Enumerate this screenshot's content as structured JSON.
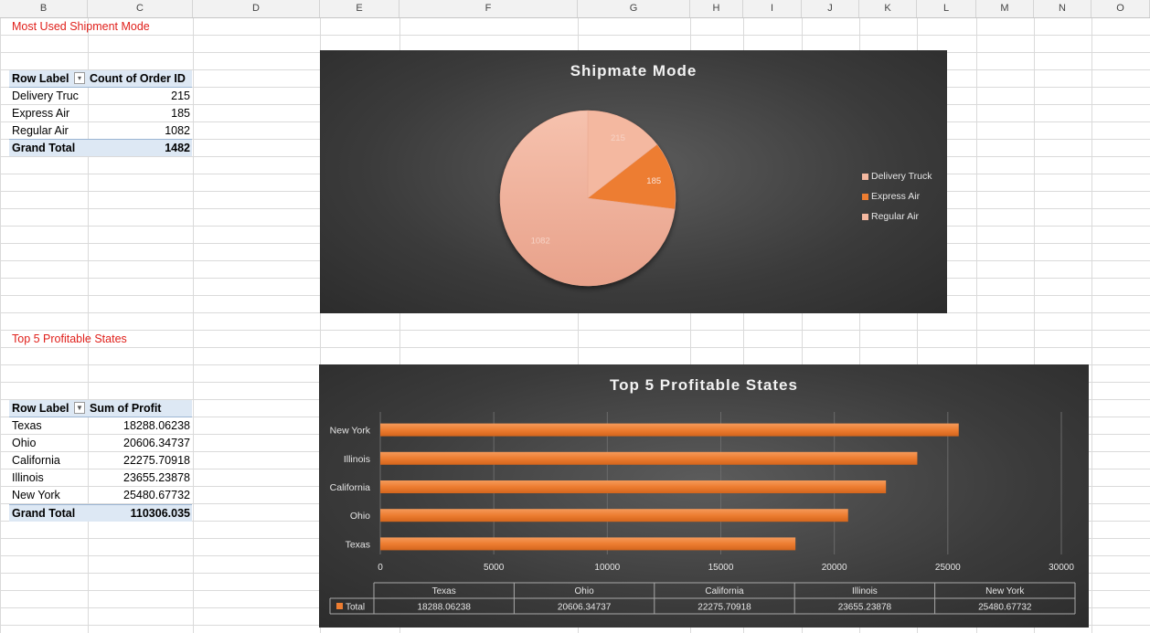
{
  "columns": [
    "B",
    "C",
    "D",
    "E",
    "F",
    "G",
    "H",
    "I",
    "J",
    "K",
    "L",
    "M",
    "N",
    "O"
  ],
  "pivot1": {
    "title": "Most Used Shipment Mode",
    "row_labels_header": "Row Label",
    "value_header": "Count of Order ID",
    "rows": [
      {
        "label": "Delivery Truc",
        "value": "215"
      },
      {
        "label": "Express Air",
        "value": "185"
      },
      {
        "label": "Regular Air",
        "value": "1082"
      }
    ],
    "total_label": "Grand Total",
    "total_value": "1482"
  },
  "pivot2": {
    "title": "Top 5 Profitable States",
    "row_labels_header": "Row Label",
    "value_header": "Sum of Profit",
    "rows": [
      {
        "label": "Texas",
        "value": "18288.06238"
      },
      {
        "label": "Ohio",
        "value": "20606.34737"
      },
      {
        "label": "California",
        "value": "22275.70918"
      },
      {
        "label": "Illinois",
        "value": "23655.23878"
      },
      {
        "label": "New York",
        "value": "25480.67732"
      }
    ],
    "total_label": "Grand Total",
    "total_value": "110306.035"
  },
  "chart_data": [
    {
      "type": "pie",
      "title": "Shipmate Mode",
      "categories": [
        "Delivery Truck",
        "Express Air",
        "Regular Air"
      ],
      "values": [
        215,
        185,
        1082
      ],
      "colors": [
        "#f4b8a0",
        "#ed7d31",
        "#f2b49c"
      ],
      "legend": "right"
    },
    {
      "type": "bar",
      "orientation": "horizontal",
      "title": "Top 5 Profitable States",
      "categories": [
        "Texas",
        "Ohio",
        "California",
        "Illinois",
        "New York"
      ],
      "series": [
        {
          "name": "Total",
          "values": [
            18288.06238,
            20606.34737,
            22275.70918,
            23655.23878,
            25480.67732
          ]
        }
      ],
      "value_labels": [
        "18288.06238",
        "20606.34737",
        "22275.70918",
        "23655.23878",
        "25480.67732"
      ],
      "xlim": [
        0,
        30000
      ],
      "xticks": [
        0,
        5000,
        10000,
        15000,
        20000,
        25000,
        30000
      ],
      "color": "#ed7d31",
      "grid": true,
      "data_table": true
    }
  ]
}
